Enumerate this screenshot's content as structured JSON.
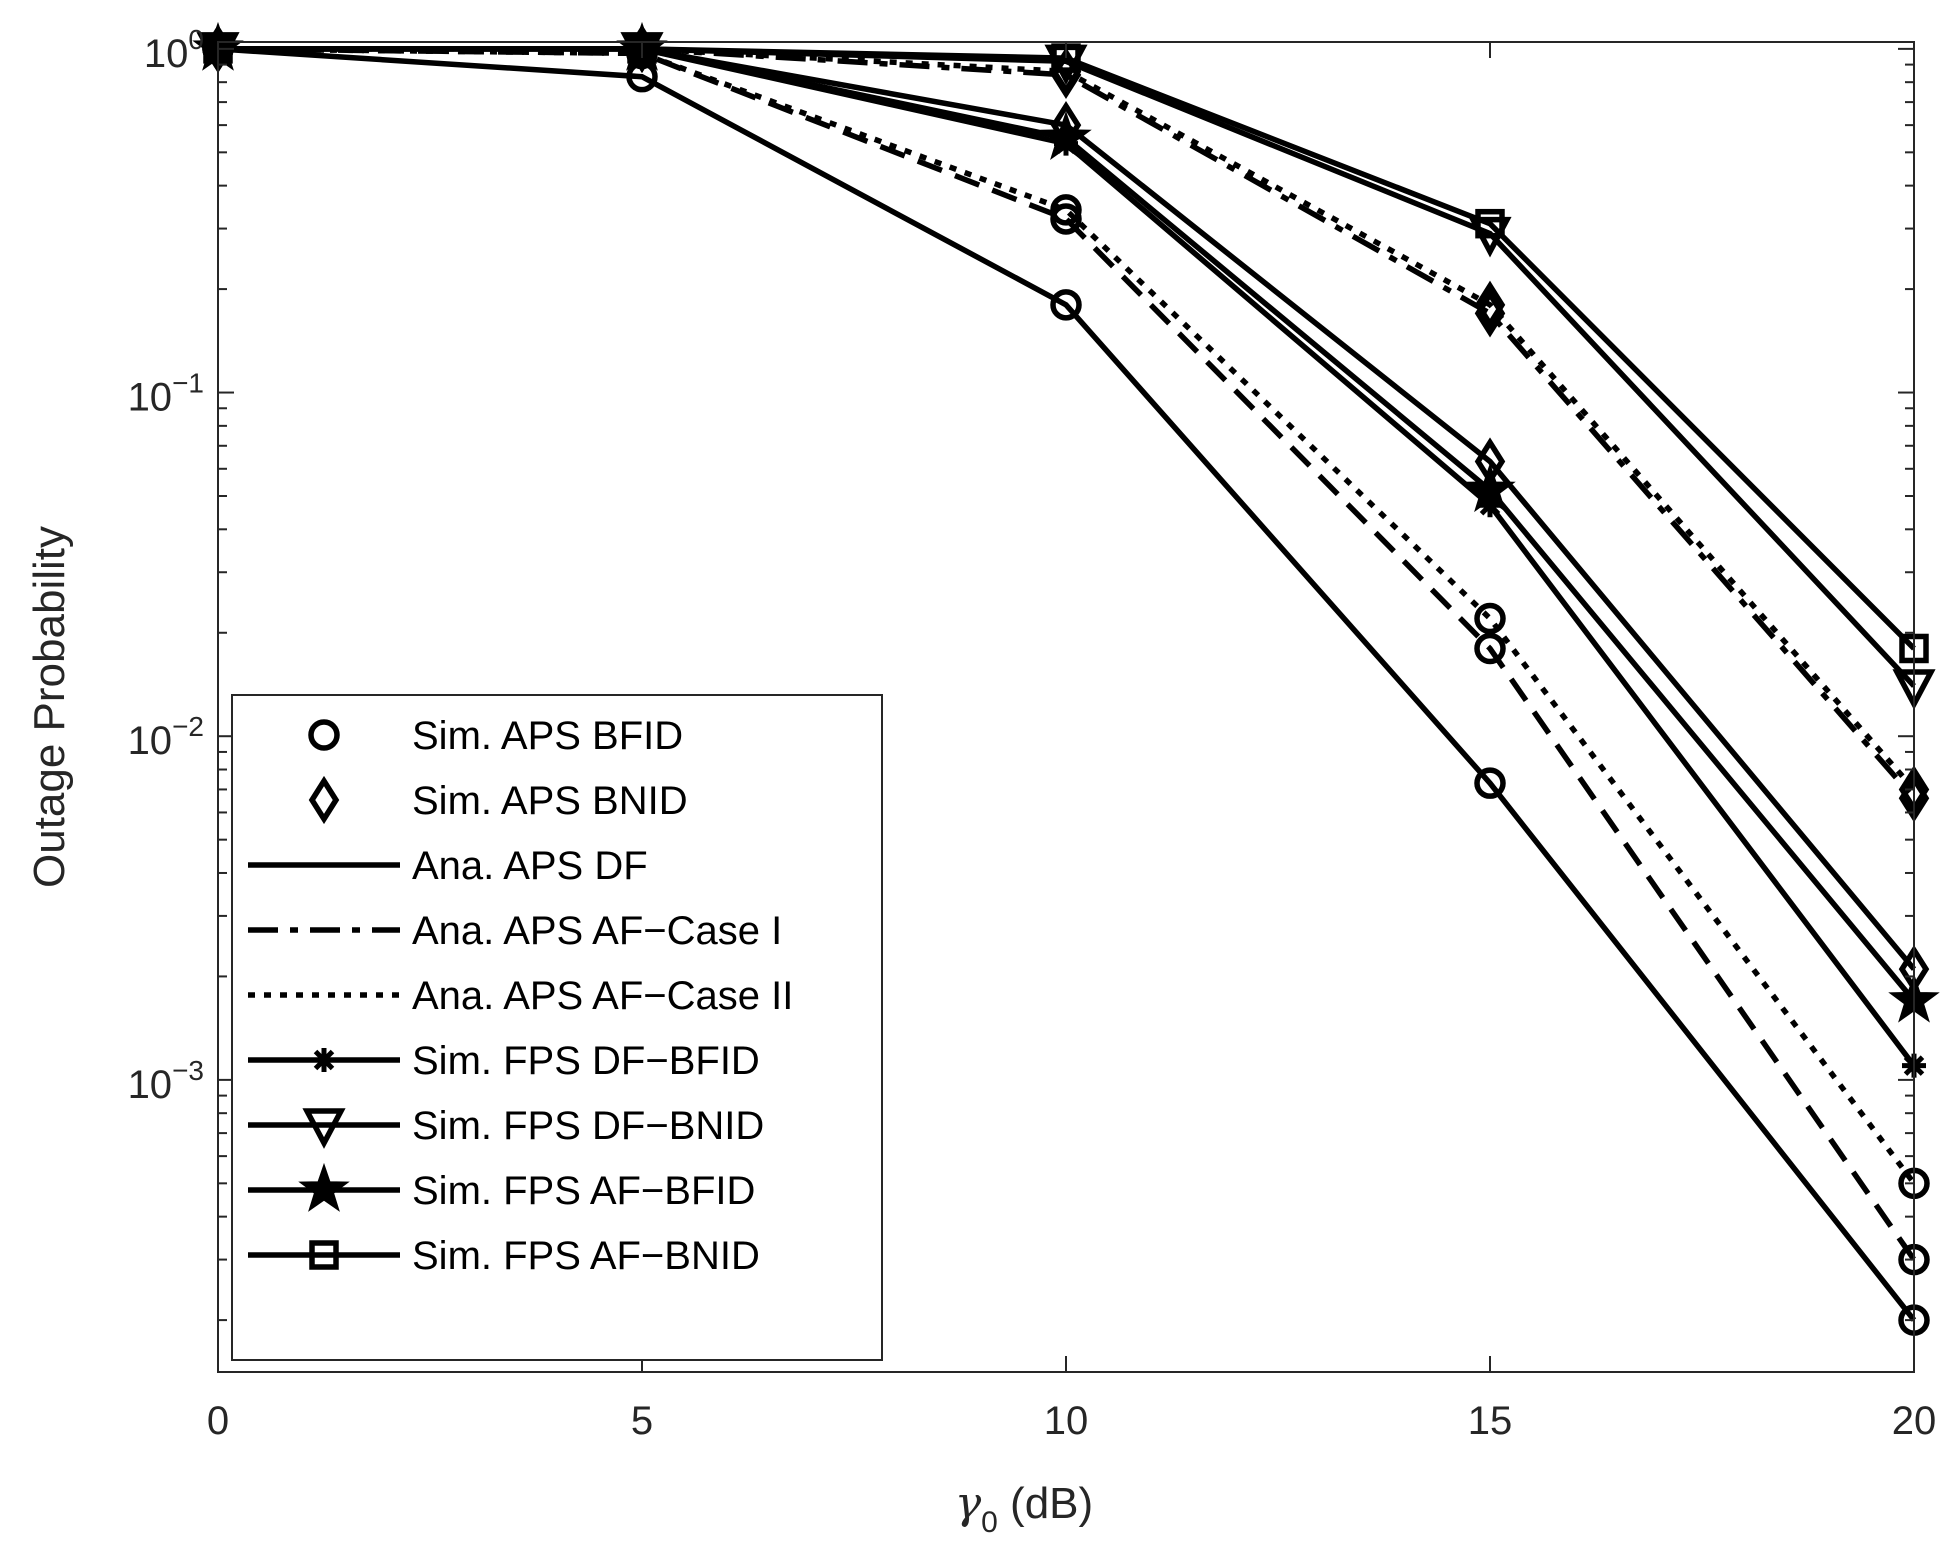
{
  "chart_data": {
    "type": "line",
    "xlabel_symbol": "γ",
    "xlabel_sub": "0",
    "xlabel_unit": " (dB)",
    "ylabel": "Outage Probability",
    "yscale": "log",
    "xlim": [
      0,
      20
    ],
    "ylim_exp": [
      -3.85,
      0.02
    ],
    "x_ticks": [
      0,
      5,
      10,
      15,
      20
    ],
    "x_tick_labels": [
      "0",
      "5",
      "10",
      "15",
      "20"
    ],
    "y_tick_exponents": [
      0,
      -1,
      -2,
      -3
    ],
    "y_tick_base": "10",
    "y_tick_exp_labels": [
      "0",
      "-1",
      "-2",
      "-3"
    ],
    "x": [
      0,
      5,
      10,
      15,
      20
    ],
    "series": [
      {
        "name": "Ana. APS DF (BFID)",
        "style": "solid",
        "marker": "none",
        "in_legend": false,
        "values": [
          1.0,
          0.83,
          0.18,
          0.0073,
          0.0002
        ]
      },
      {
        "name": "Ana. APS AF-Case I (BFID)",
        "style": "dashed",
        "marker": "none",
        "in_legend": false,
        "values": [
          1.0,
          0.97,
          0.32,
          0.018,
          0.0003
        ]
      },
      {
        "name": "Ana. APS AF-Case II (BFID)",
        "style": "dotted",
        "marker": "none",
        "in_legend": false,
        "values": [
          1.0,
          0.97,
          0.34,
          0.022,
          0.0005
        ]
      },
      {
        "name": "Sim. APS BFID DF",
        "style": "none",
        "marker": "circle",
        "in_legend": false,
        "values": [
          1.0,
          0.83,
          0.18,
          0.0073,
          0.0002
        ]
      },
      {
        "name": "Sim. APS BFID AF-I",
        "style": "none",
        "marker": "circle",
        "in_legend": false,
        "values": [
          1.0,
          0.97,
          0.32,
          0.018,
          0.0003
        ]
      },
      {
        "name": "Sim. APS BFID AF-II",
        "style": "none",
        "marker": "circle",
        "in_legend": false,
        "values": [
          1.0,
          0.97,
          0.34,
          0.022,
          0.0005
        ]
      },
      {
        "name": "Ana. APS DF (BNID)",
        "style": "solid",
        "marker": "none",
        "in_legend": false,
        "values": [
          1.0,
          1.0,
          0.6,
          0.063,
          0.0021
        ]
      },
      {
        "name": "Ana. APS AF-Case I (BNID)",
        "style": "dashdot",
        "marker": "none",
        "in_legend": false,
        "values": [
          1.0,
          1.0,
          0.84,
          0.17,
          0.0066
        ]
      },
      {
        "name": "Ana. APS AF-Case II (BNID)",
        "style": "dotted",
        "marker": "none",
        "in_legend": false,
        "values": [
          1.0,
          1.0,
          0.86,
          0.18,
          0.007
        ]
      },
      {
        "name": "Sim. APS BNID DF",
        "style": "none",
        "marker": "diamond",
        "in_legend": false,
        "values": [
          1.0,
          1.0,
          0.6,
          0.063,
          0.0021
        ]
      },
      {
        "name": "Sim. APS BNID AF-I",
        "style": "none",
        "marker": "diamond",
        "in_legend": false,
        "values": [
          1.0,
          1.0,
          0.84,
          0.17,
          0.0066
        ]
      },
      {
        "name": "Sim. APS BNID AF-II",
        "style": "none",
        "marker": "diamond",
        "in_legend": false,
        "values": [
          1.0,
          1.0,
          0.86,
          0.18,
          0.007
        ]
      },
      {
        "name": "Sim. FPS DF-BFID",
        "style": "solid",
        "marker": "asterisk",
        "in_legend": true,
        "values": [
          1.0,
          1.0,
          0.53,
          0.047,
          0.0011
        ]
      },
      {
        "name": "Sim. FPS DF-BNID",
        "style": "solid",
        "marker": "triangle-down",
        "in_legend": true,
        "values": [
          1.0,
          1.0,
          0.92,
          0.29,
          0.014
        ]
      },
      {
        "name": "Sim. FPS AF-BFID",
        "style": "solid",
        "marker": "pentagram",
        "in_legend": true,
        "values": [
          1.0,
          1.0,
          0.55,
          0.052,
          0.0017
        ]
      },
      {
        "name": "Sim. FPS AF-BNID",
        "style": "solid",
        "marker": "square",
        "in_legend": true,
        "values": [
          1.0,
          1.0,
          0.94,
          0.31,
          0.018
        ]
      }
    ],
    "legend": {
      "position": "bottom-left",
      "entries": [
        {
          "label": "Sim. APS BFID",
          "line": "none",
          "marker": "circle"
        },
        {
          "label": "Sim. APS BNID",
          "line": "none",
          "marker": "diamond"
        },
        {
          "label": "Ana. APS DF",
          "line": "solid",
          "marker": "none"
        },
        {
          "label": "Ana. APS AF−Case I",
          "line": "dashdot",
          "marker": "none"
        },
        {
          "label": "Ana. APS AF−Case II",
          "line": "dotted",
          "marker": "none"
        },
        {
          "label": "Sim. FPS DF−BFID",
          "line": "solid",
          "marker": "asterisk"
        },
        {
          "label": "Sim. FPS DF−BNID",
          "line": "solid",
          "marker": "triangle-down"
        },
        {
          "label": "Sim. FPS AF−BFID",
          "line": "solid",
          "marker": "pentagram"
        },
        {
          "label": "Sim. FPS AF−BNID",
          "line": "solid",
          "marker": "square"
        }
      ]
    },
    "grid": false,
    "colors": {
      "ink": "#000000",
      "label": "#262626",
      "background": "#ffffff"
    }
  }
}
